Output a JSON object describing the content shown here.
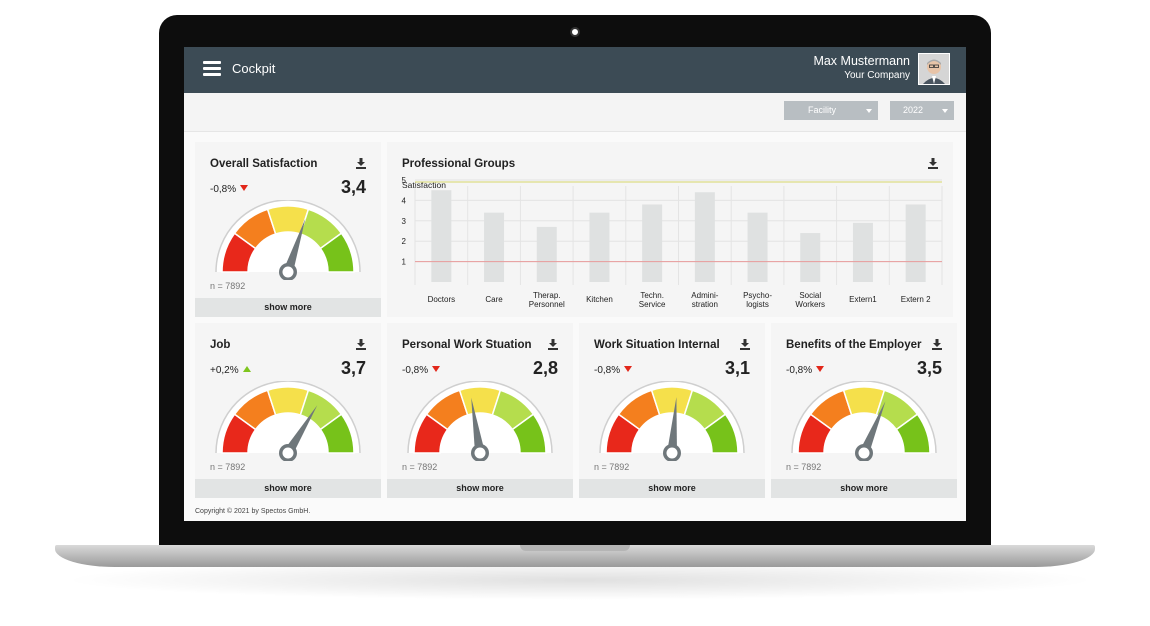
{
  "app": {
    "title": "Cockpit"
  },
  "user": {
    "name": "Max Mustermann",
    "company": "Your Company"
  },
  "filters": {
    "facility": "Facility",
    "year": "2022"
  },
  "overall": {
    "title": "Overall Satisfaction",
    "trend": "-0,8%",
    "trend_dir": "down",
    "score": "3,4",
    "score_value": 3.4,
    "n": "n = 7892",
    "more": "show more"
  },
  "groups": {
    "title": "Professional Groups",
    "chart_data": {
      "type": "bar",
      "ylabel": "Satisfaction",
      "ylim": [
        0,
        5
      ],
      "yticks": [
        "1",
        "2",
        "3",
        "4",
        "5"
      ],
      "categories": [
        "Doctors",
        "Care",
        "Therap.\nPersonnel",
        "Kitchen",
        "Techn.\nService",
        "Admini-\nstration",
        "Psycho-\nlogists",
        "Social\nWorkers",
        "Extern1",
        "Extern 2"
      ],
      "values": [
        4.5,
        3.4,
        2.7,
        3.4,
        3.8,
        4.4,
        3.4,
        2.4,
        2.9,
        3.8
      ],
      "reference_lines": [
        {
          "value": 4.9,
          "color": "#d8d86a"
        },
        {
          "value": 1.0,
          "color": "#e89a9a"
        }
      ],
      "bar_color": "#dfe1e1"
    }
  },
  "cards": [
    {
      "title": "Job",
      "trend": "+0,2%",
      "trend_dir": "up",
      "score": "3,7",
      "score_value": 3.7,
      "n": "n = 7892",
      "more": "show more"
    },
    {
      "title": "Personal Work Stuation",
      "trend": "-0,8%",
      "trend_dir": "down",
      "score": "2,8",
      "score_value": 2.8,
      "n": "n = 7892",
      "more": "show more"
    },
    {
      "title": "Work Situation Internal",
      "trend": "-0,8%",
      "trend_dir": "down",
      "score": "3,1",
      "score_value": 3.1,
      "n": "n = 7892",
      "more": "show more"
    },
    {
      "title": "Benefits of the Employer",
      "trend": "-0,8%",
      "trend_dir": "down",
      "score": "3,5",
      "score_value": 3.5,
      "n": "n = 7892",
      "more": "show more"
    }
  ],
  "gauge_colors": [
    "#e8281b",
    "#f47f1e",
    "#f5e04b",
    "#b5dd4d",
    "#77c21a"
  ],
  "icons": {
    "menu": "hamburger-icon",
    "download": "download-icon",
    "avatar": "user-avatar"
  },
  "footer": {
    "copyright": "Copyright © 2021 by Spectos GmbH."
  }
}
